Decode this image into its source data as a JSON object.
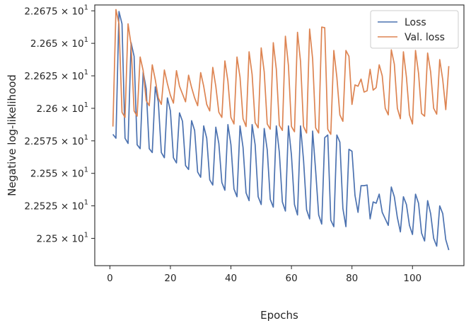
{
  "chart_data": {
    "type": "line",
    "xlabel": "Epochs",
    "ylabel": "Negative log-likelihood",
    "xlim": [
      -5,
      117
    ],
    "ylim": [
      22.479,
      22.6795
    ],
    "xticks": [
      {
        "value": 0,
        "label": "0"
      },
      {
        "value": 20,
        "label": "20"
      },
      {
        "value": 40,
        "label": "40"
      },
      {
        "value": 60,
        "label": "60"
      },
      {
        "value": 80,
        "label": "80"
      },
      {
        "value": 100,
        "label": "100"
      }
    ],
    "yticks": [
      {
        "value": 22.5,
        "mant": "2.25",
        "exp": "1"
      },
      {
        "value": 22.525,
        "mant": "2.2525",
        "exp": "1"
      },
      {
        "value": 22.55,
        "mant": "2.255",
        "exp": "1"
      },
      {
        "value": 22.575,
        "mant": "2.2575",
        "exp": "1"
      },
      {
        "value": 22.6,
        "mant": "2.26",
        "exp": "1"
      },
      {
        "value": 22.625,
        "mant": "2.2625",
        "exp": "1"
      },
      {
        "value": 22.65,
        "mant": "2.265",
        "exp": "1"
      },
      {
        "value": 22.675,
        "mant": "2.2675",
        "exp": "1"
      }
    ],
    "times_symbol": "×",
    "base": "10",
    "grid": false,
    "legend_position": "top-right",
    "series": [
      {
        "name": "Loss",
        "color": "#4c72b0",
        "x": [
          1,
          2,
          3,
          4,
          5,
          6,
          7,
          8,
          9,
          10,
          11,
          12,
          13,
          14,
          15,
          16,
          17,
          18,
          19,
          20,
          21,
          22,
          23,
          24,
          25,
          26,
          27,
          28,
          29,
          30,
          31,
          32,
          33,
          34,
          35,
          36,
          37,
          38,
          39,
          40,
          41,
          42,
          43,
          44,
          45,
          46,
          47,
          48,
          49,
          50,
          51,
          52,
          53,
          54,
          55,
          56,
          57,
          58,
          59,
          60,
          61,
          62,
          63,
          64,
          65,
          66,
          67,
          68,
          69,
          70,
          71,
          72,
          73,
          74,
          75,
          76,
          77,
          78,
          79,
          80,
          81,
          82,
          83,
          84,
          85,
          86,
          87,
          88,
          89,
          90,
          91,
          92,
          93,
          94,
          95,
          96,
          97,
          98,
          99,
          100,
          101,
          102,
          103,
          104,
          105,
          106,
          107,
          108,
          109,
          110,
          111,
          112
        ],
        "values": [
          22.58,
          22.577,
          22.6745,
          22.665,
          22.577,
          22.573,
          22.6505,
          22.64,
          22.572,
          22.569,
          22.628,
          22.615,
          22.569,
          22.566,
          22.6165,
          22.605,
          22.566,
          22.562,
          22.608,
          22.598,
          22.562,
          22.558,
          22.5965,
          22.59,
          22.556,
          22.553,
          22.5905,
          22.583,
          22.551,
          22.547,
          22.5865,
          22.577,
          22.545,
          22.541,
          22.5855,
          22.573,
          22.543,
          22.537,
          22.5875,
          22.572,
          22.538,
          22.532,
          22.5865,
          22.57,
          22.535,
          22.529,
          22.5875,
          22.572,
          22.532,
          22.526,
          22.5845,
          22.568,
          22.53,
          22.524,
          22.5865,
          22.566,
          22.528,
          22.521,
          22.5865,
          22.564,
          22.526,
          22.518,
          22.5865,
          22.56,
          22.522,
          22.515,
          22.5825,
          22.552,
          22.518,
          22.511,
          22.5775,
          22.5795,
          22.514,
          22.509,
          22.5795,
          22.574,
          22.523,
          22.509,
          22.5685,
          22.567,
          22.533,
          22.52,
          22.5405,
          22.5405,
          22.541,
          22.515,
          22.528,
          22.527,
          22.534,
          22.52,
          22.515,
          22.51,
          22.5395,
          22.532,
          22.516,
          22.505,
          22.532,
          22.526,
          22.51,
          22.503,
          22.534,
          22.527,
          22.504,
          22.498,
          22.529,
          22.519,
          22.5,
          22.494,
          22.525,
          22.519,
          22.499,
          22.491
        ]
      },
      {
        "name": "Val. loss",
        "color": "#dd8452",
        "x": [
          1,
          2,
          3,
          4,
          5,
          6,
          7,
          8,
          9,
          10,
          11,
          12,
          13,
          14,
          15,
          16,
          17,
          18,
          19,
          20,
          21,
          22,
          23,
          24,
          25,
          26,
          27,
          28,
          29,
          30,
          31,
          32,
          33,
          34,
          35,
          36,
          37,
          38,
          39,
          40,
          41,
          42,
          43,
          44,
          45,
          46,
          47,
          48,
          49,
          50,
          51,
          52,
          53,
          54,
          55,
          56,
          57,
          58,
          59,
          60,
          61,
          62,
          63,
          64,
          65,
          66,
          67,
          68,
          69,
          70,
          71,
          72,
          73,
          74,
          75,
          76,
          77,
          78,
          79,
          80,
          81,
          82,
          83,
          84,
          85,
          86,
          87,
          88,
          89,
          90,
          91,
          92,
          93,
          94,
          95,
          96,
          97,
          98,
          99,
          100,
          101,
          102,
          103,
          104,
          105,
          106,
          107,
          108,
          109,
          110,
          111,
          112
        ],
        "values": [
          22.586,
          22.676,
          22.665,
          22.597,
          22.593,
          22.665,
          22.649,
          22.598,
          22.594,
          22.6395,
          22.629,
          22.606,
          22.602,
          22.6335,
          22.622,
          22.608,
          22.603,
          22.6295,
          22.619,
          22.61,
          22.604,
          22.629,
          22.617,
          22.611,
          22.605,
          22.6255,
          22.616,
          22.608,
          22.602,
          22.6275,
          22.617,
          22.603,
          22.598,
          22.6315,
          22.617,
          22.597,
          22.593,
          22.6365,
          22.621,
          22.593,
          22.588,
          22.6395,
          22.624,
          22.592,
          22.586,
          22.6435,
          22.626,
          22.589,
          22.585,
          22.6465,
          22.628,
          22.588,
          22.584,
          22.6505,
          22.63,
          22.587,
          22.583,
          22.6555,
          22.633,
          22.586,
          22.582,
          22.6585,
          22.636,
          22.586,
          22.581,
          22.661,
          22.638,
          22.585,
          22.581,
          22.6625,
          22.662,
          22.584,
          22.58,
          22.6445,
          22.624,
          22.595,
          22.59,
          22.6445,
          22.64,
          22.603,
          22.618,
          22.617,
          22.6225,
          22.6125,
          22.6135,
          22.63,
          22.614,
          22.616,
          22.6335,
          22.625,
          22.6,
          22.595,
          22.645,
          22.634,
          22.6,
          22.592,
          22.6435,
          22.624,
          22.595,
          22.588,
          22.6445,
          22.627,
          22.596,
          22.594,
          22.6425,
          22.628,
          22.6,
          22.5955,
          22.6375,
          22.622,
          22.599,
          22.6325
        ]
      }
    ]
  }
}
